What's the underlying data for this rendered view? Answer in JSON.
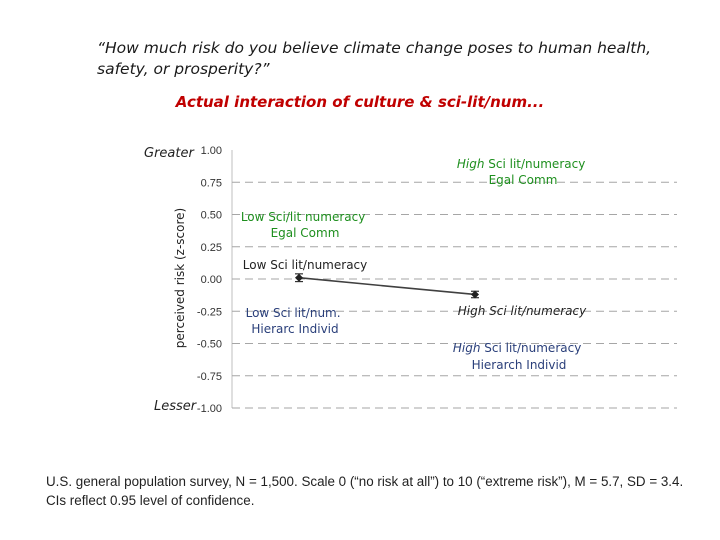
{
  "header": {
    "question": "“How much risk do you believe climate change poses to human health, safety, or prosperity?”",
    "subtitle": "Actual interaction of culture & sci-lit/num..."
  },
  "footnote": "U.S. general population survey, N = 1,500. Scale 0 (“no risk at all”) to 10 (“extreme risk”), M = 5.7, SD = 3.4. CIs reflect 0.95 level of confidence.",
  "colors": {
    "red": "#c00000",
    "green": "#1e8f1e",
    "grid": "#a6a6a6",
    "line": "#404040"
  },
  "chart_data": {
    "type": "line",
    "title": "Actual interaction of culture & sci-lit/num...",
    "ylabel": "perceived risk (z-score)",
    "ylim": [
      -1.0,
      1.0
    ],
    "yticks": [
      1.0,
      0.75,
      0.5,
      0.25,
      0.0,
      -0.25,
      -0.5,
      -0.75,
      -1.0
    ],
    "ytick_labels": [
      "1.00",
      "0.75",
      "0.50",
      "0.25",
      "0.00",
      "-0.25",
      "-0.50",
      "-0.75",
      "-1.00"
    ],
    "y_end_labels": {
      "top": "Greater",
      "bottom": "Lesser"
    },
    "grid": true,
    "categories": [
      "Low Sci lit/numeracy",
      "High Sci lit/numeracy"
    ],
    "series": [
      {
        "values": [
          0.01,
          -0.12
        ],
        "ci": [
          0.03,
          0.025
        ]
      }
    ],
    "annotations": {
      "egal_low": {
        "line1": "Low  Sci/lit numeracy",
        "line2": "Egal Comm"
      },
      "egal_high": {
        "line1_word": "High",
        "line1_rest": " Sci lit/numeracy",
        "line2": "Egal Comm"
      },
      "mid_low": "Low Sci lit/numeracy",
      "mid_high": "High Sci lit/numeracy",
      "hier_low": {
        "line1": "Low Sci lit/num.",
        "line2": "Hierarc Individ"
      },
      "hier_high": {
        "line1_word": "High",
        "line1_rest": " Sci lit/numeracy",
        "line2": "Hierarch Individ"
      }
    }
  }
}
